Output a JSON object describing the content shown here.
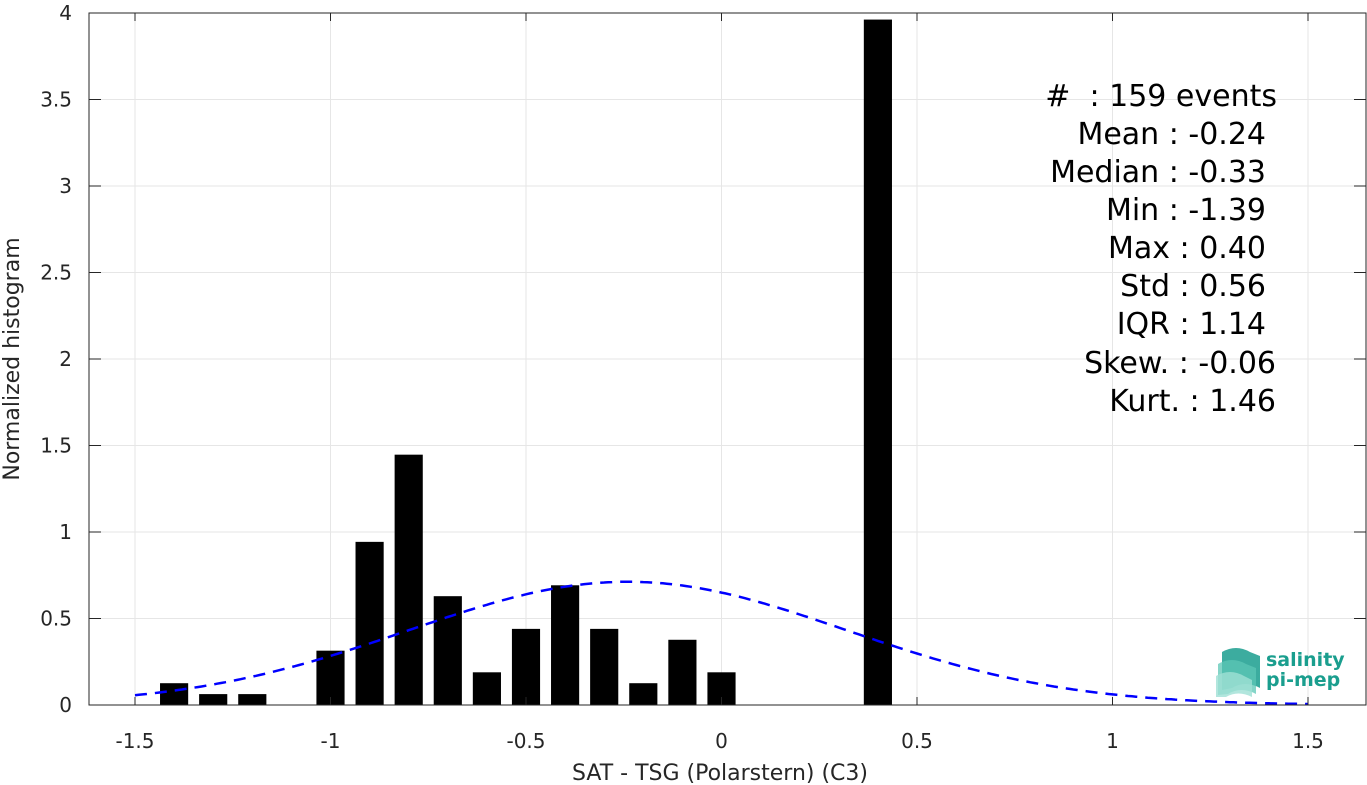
{
  "chart_data": {
    "type": "bar",
    "xlabel": "SAT - TSG (Polarstern) (C3)",
    "ylabel": "Normalized histogram",
    "xlim": [
      -1.6,
      1.6
    ],
    "ylim": [
      0,
      4
    ],
    "xticks": [
      -1.5,
      -1,
      -0.5,
      0,
      0.5,
      1,
      1.5
    ],
    "xtick_labels": [
      "-1.5",
      "-1",
      "-0.5",
      "0",
      "0.5",
      "1",
      "1.5"
    ],
    "yticks": [
      0,
      0.5,
      1,
      1.5,
      2,
      2.5,
      3,
      3.5,
      4
    ],
    "ytick_labels": [
      "0",
      "0.5",
      "1",
      "1.5",
      "2",
      "2.5",
      "3",
      "3.5",
      "4"
    ],
    "grid": true,
    "bin_width": 0.1,
    "bars": {
      "centers": [
        -1.4,
        -1.3,
        -1.2,
        -1.1,
        -1.0,
        -0.9,
        -0.8,
        -0.7,
        -0.6,
        -0.5,
        -0.4,
        -0.3,
        -0.2,
        -0.1,
        0.0,
        0.1,
        0.2,
        0.3,
        0.4
      ],
      "values": [
        0.126,
        0.063,
        0.063,
        0,
        0.314,
        0.943,
        1.447,
        0.629,
        0.189,
        0.44,
        0.692,
        0.44,
        0.126,
        0.377,
        0.189,
        0,
        0,
        0,
        3.962
      ],
      "color": "#000000"
    },
    "fit_curve": {
      "label": "",
      "style": "dashed",
      "color": "#0000ff",
      "mean": -0.24,
      "std": 0.56,
      "x_range": [
        -1.5,
        1.5
      ]
    },
    "stats": {
      "count_line": "#  : 159 events",
      "mean_line": "Mean : -0.24",
      "median_line": "Median : -0.33",
      "min_line": "Min : -1.39",
      "max_line": "Max : 0.40",
      "std_line": "Std : 0.56",
      "iqr_line": "IQR : 1.14",
      "skew_line": "Skew. : -0.06",
      "kurt_line": "Kurt. : 1.46"
    }
  },
  "logo": {
    "line1": "salinity",
    "line2": "pi-mep",
    "color": "#1a9e8e"
  }
}
